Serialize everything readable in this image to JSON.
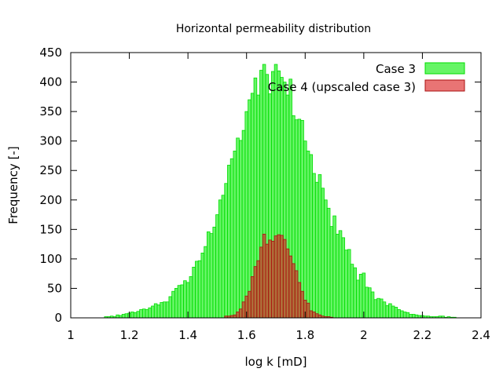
{
  "chart_data": {
    "type": "bar",
    "title": "Horizontal permeability distribution",
    "xlabel": "log k [mD]",
    "ylabel": "Frequency [-]",
    "xlim": [
      1,
      2.4
    ],
    "ylim": [
      0,
      450
    ],
    "xticks": [
      "1",
      "1.2",
      "1.4",
      "1.6",
      "1.8",
      "2",
      "2.2",
      "2.4"
    ],
    "yticks": [
      "0",
      "50",
      "100",
      "150",
      "200",
      "250",
      "300",
      "350",
      "400",
      "450"
    ],
    "grid": false,
    "legend_position": "top-right",
    "bin_width": 0.01,
    "series": [
      {
        "name": "Case 3",
        "color": "#00ee00",
        "x": [
          1.12,
          1.13,
          1.14,
          1.15,
          1.16,
          1.17,
          1.18,
          1.19,
          1.2,
          1.21,
          1.22,
          1.23,
          1.24,
          1.25,
          1.26,
          1.27,
          1.28,
          1.29,
          1.3,
          1.31,
          1.32,
          1.33,
          1.34,
          1.35,
          1.36,
          1.37,
          1.38,
          1.39,
          1.4,
          1.41,
          1.42,
          1.43,
          1.44,
          1.45,
          1.46,
          1.47,
          1.48,
          1.49,
          1.5,
          1.51,
          1.52,
          1.53,
          1.54,
          1.55,
          1.56,
          1.57,
          1.58,
          1.59,
          1.6,
          1.61,
          1.62,
          1.63,
          1.64,
          1.65,
          1.66,
          1.67,
          1.68,
          1.69,
          1.7,
          1.71,
          1.72,
          1.73,
          1.74,
          1.75,
          1.76,
          1.77,
          1.78,
          1.79,
          1.8,
          1.81,
          1.82,
          1.83,
          1.84,
          1.85,
          1.86,
          1.87,
          1.88,
          1.89,
          1.9,
          1.91,
          1.92,
          1.93,
          1.94,
          1.95,
          1.96,
          1.97,
          1.98,
          1.99,
          2.0,
          2.01,
          2.02,
          2.03,
          2.04,
          2.05,
          2.06,
          2.07,
          2.08,
          2.09,
          2.1,
          2.11,
          2.12,
          2.13,
          2.14,
          2.15,
          2.16,
          2.17,
          2.18,
          2.19,
          2.2,
          2.21,
          2.22,
          2.23,
          2.24,
          2.25,
          2.26,
          2.27,
          2.28,
          2.29,
          2.3,
          2.31
        ],
        "values": [
          2,
          2,
          3,
          2,
          5,
          4,
          6,
          7,
          8,
          10,
          9,
          11,
          14,
          15,
          14,
          17,
          20,
          24,
          22,
          26,
          27,
          27,
          36,
          45,
          50,
          55,
          56,
          63,
          60,
          70,
          86,
          96,
          97,
          110,
          121,
          146,
          143,
          154,
          175,
          200,
          208,
          228,
          259,
          270,
          283,
          305,
          301,
          318,
          350,
          370,
          381,
          407,
          378,
          420,
          430,
          413,
          380,
          418,
          430,
          419,
          408,
          400,
          378,
          405,
          343,
          336,
          337,
          335,
          300,
          283,
          277,
          245,
          230,
          243,
          220,
          200,
          186,
          155,
          173,
          142,
          148,
          136,
          115,
          116,
          91,
          85,
          64,
          74,
          76,
          52,
          51,
          44,
          31,
          33,
          32,
          27,
          21,
          24,
          20,
          18,
          14,
          12,
          10,
          9,
          6,
          6,
          5,
          4,
          4,
          3,
          3,
          2,
          2,
          2,
          3,
          3,
          1,
          2,
          1,
          1
        ]
      },
      {
        "name": "Case 4 (upscaled case 3)",
        "color": "#dd2222",
        "x": [
          1.53,
          1.54,
          1.55,
          1.56,
          1.57,
          1.58,
          1.59,
          1.6,
          1.61,
          1.62,
          1.63,
          1.64,
          1.65,
          1.66,
          1.67,
          1.68,
          1.69,
          1.7,
          1.71,
          1.72,
          1.73,
          1.74,
          1.75,
          1.76,
          1.77,
          1.78,
          1.79,
          1.8,
          1.81,
          1.82,
          1.83,
          1.84,
          1.85,
          1.86,
          1.87,
          1.88,
          1.89
        ],
        "values": [
          3,
          3,
          4,
          5,
          10,
          15,
          27,
          37,
          45,
          70,
          87,
          97,
          120,
          142,
          125,
          132,
          130,
          139,
          141,
          140,
          133,
          117,
          105,
          92,
          80,
          60,
          45,
          30,
          25,
          12,
          10,
          7,
          5,
          3,
          2,
          2,
          1
        ]
      }
    ]
  }
}
